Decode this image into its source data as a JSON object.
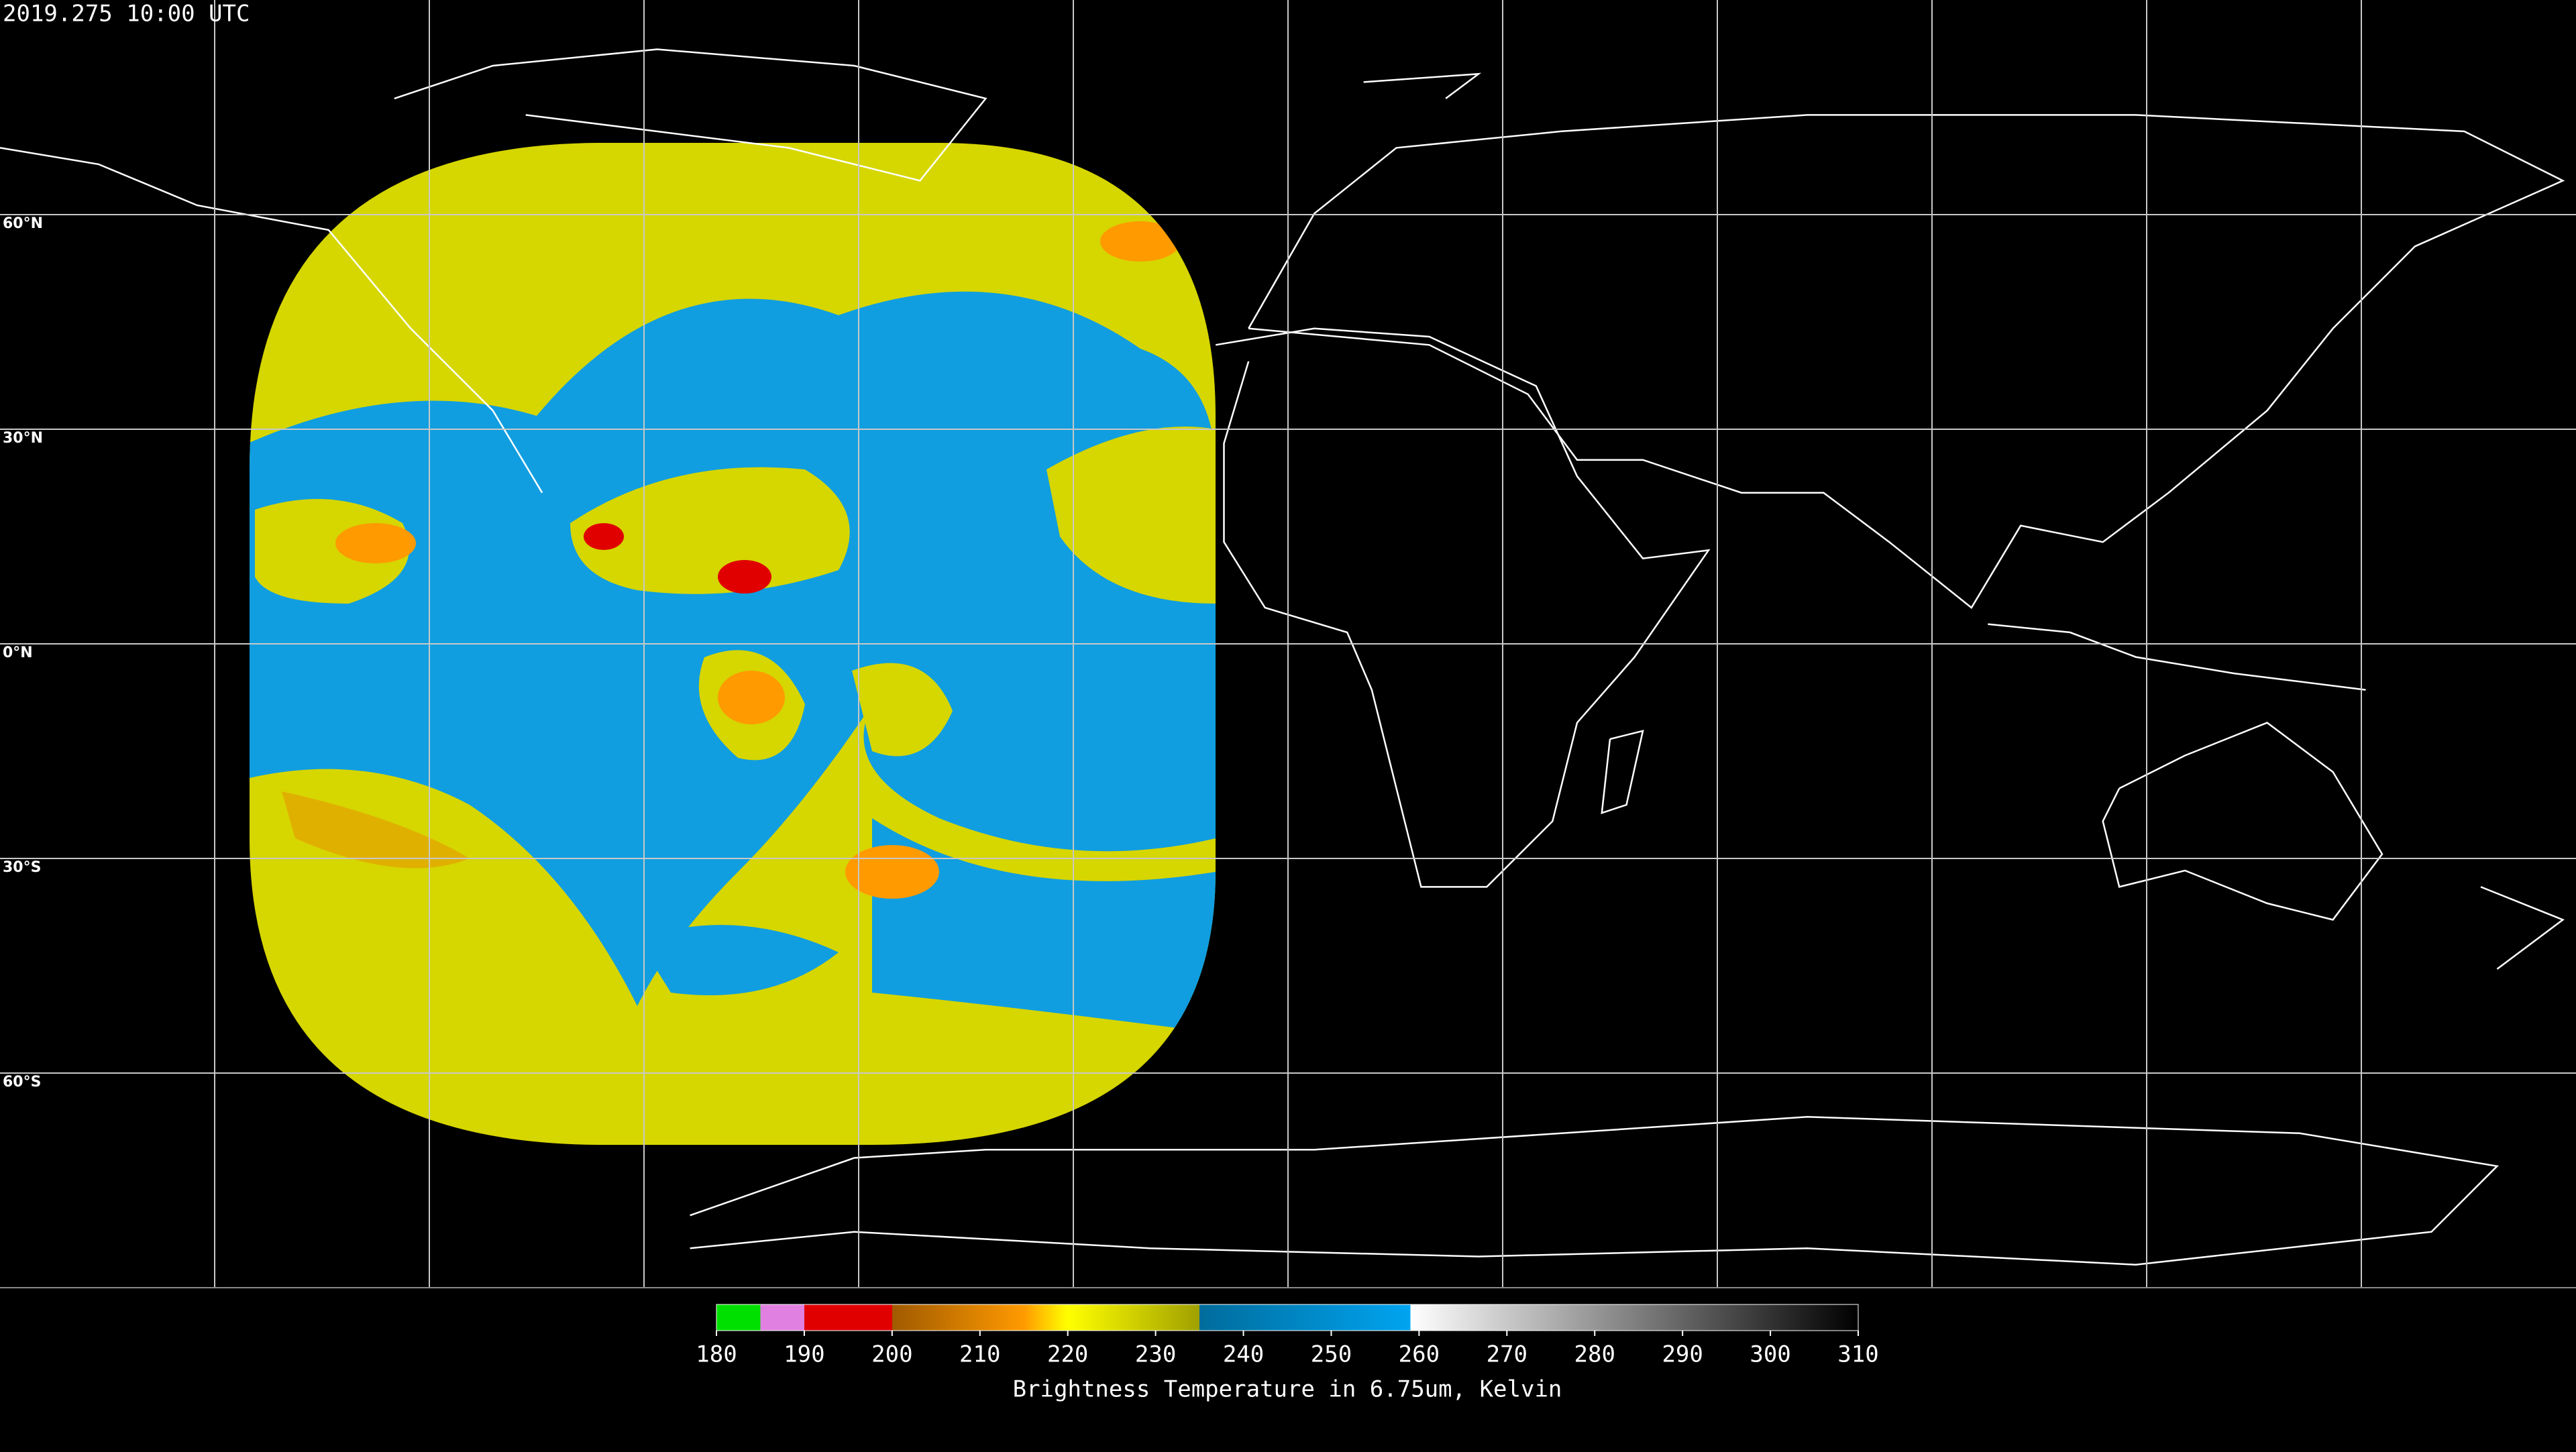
{
  "timestamp": "2019.275 10:00 UTC",
  "lat_lines": [
    {
      "value": 60,
      "label": "60°N"
    },
    {
      "value": 30,
      "label": "30°N"
    },
    {
      "value": 0,
      "label": "0°N"
    },
    {
      "value": -30,
      "label": "30°S"
    },
    {
      "value": -60,
      "label": "60°S"
    }
  ],
  "colorbar": {
    "label": "Brightness Temperature in 6.75um, Kelvin",
    "lim": [
      180,
      310
    ],
    "ticks": [
      180,
      190,
      200,
      210,
      220,
      230,
      240,
      250,
      260,
      270,
      280,
      290,
      300,
      310
    ],
    "colormap": [
      {
        "value": 180,
        "color": "#00e000"
      },
      {
        "value": 185,
        "color": "#00e000"
      },
      {
        "value": 185,
        "color": "#e080e0"
      },
      {
        "value": 190,
        "color": "#e080e0"
      },
      {
        "value": 190,
        "color": "#e00000"
      },
      {
        "value": 200,
        "color": "#e00000"
      },
      {
        "value": 200,
        "color": "#a05a00"
      },
      {
        "value": 215,
        "color": "#ff9a00"
      },
      {
        "value": 220,
        "color": "#ffff00"
      },
      {
        "value": 235,
        "color": "#a0a000"
      },
      {
        "value": 235,
        "color": "#006c9c"
      },
      {
        "value": 259,
        "color": "#00a4f0"
      },
      {
        "value": 259,
        "color": "#ffffff"
      },
      {
        "value": 310,
        "color": "#000000"
      }
    ]
  }
}
